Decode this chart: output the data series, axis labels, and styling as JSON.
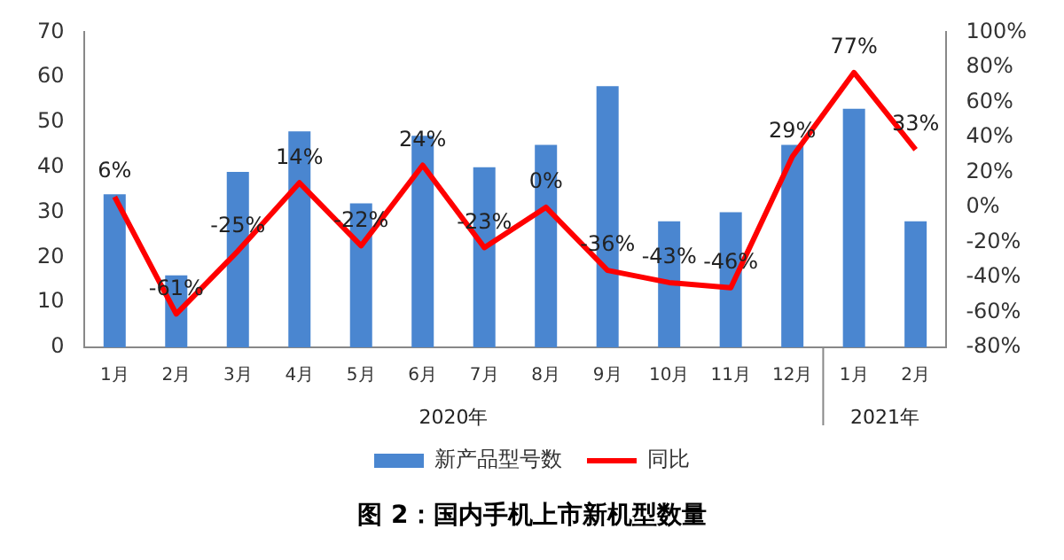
{
  "chart_data": {
    "type": "bar",
    "title": "图 2：国内手机上市新机型数量",
    "categories": [
      "1月",
      "2月",
      "3月",
      "4月",
      "5月",
      "6月",
      "7月",
      "8月",
      "9月",
      "10月",
      "11月",
      "12月",
      "1月",
      "2月"
    ],
    "series": [
      {
        "name": "新产品型号数",
        "color": "#4a86d0",
        "values": [
          34,
          16,
          39,
          48,
          32,
          47,
          40,
          45,
          58,
          28,
          30,
          45,
          53,
          28
        ]
      },
      {
        "name": "同比",
        "type": "line",
        "axis": "y2",
        "color": "#ff0000",
        "values": [
          6,
          -61,
          -25,
          14,
          -22,
          24,
          -23,
          0,
          -36,
          -43,
          -46,
          29,
          77,
          33
        ],
        "value_labels": [
          "6%",
          "-61%",
          "-25%",
          "14%",
          "-22%",
          "24%",
          "-23%",
          "0%",
          "-36%",
          "-43%",
          "-46%",
          "29%",
          "77%",
          "33%"
        ]
      }
    ],
    "ylim": [
      0,
      70
    ],
    "yticks": [
      0,
      10,
      20,
      30,
      40,
      50,
      60,
      70
    ],
    "y2lim": [
      -80,
      100
    ],
    "y2ticks": [
      {
        "value": -80,
        "label": "-80%"
      },
      {
        "value": -60,
        "label": "-60%"
      },
      {
        "value": -40,
        "label": "-40%"
      },
      {
        "value": -20,
        "label": "-20%"
      },
      {
        "value": 0,
        "label": "0%"
      },
      {
        "value": 20,
        "label": "20%"
      },
      {
        "value": 40,
        "label": "40%"
      },
      {
        "value": 60,
        "label": "60%"
      },
      {
        "value": 80,
        "label": "80%"
      },
      {
        "value": 100,
        "label": "100%"
      }
    ],
    "annotations": [
      "2020年",
      "2021年"
    ],
    "grid": false,
    "legend": "bottom",
    "marker": "none"
  }
}
